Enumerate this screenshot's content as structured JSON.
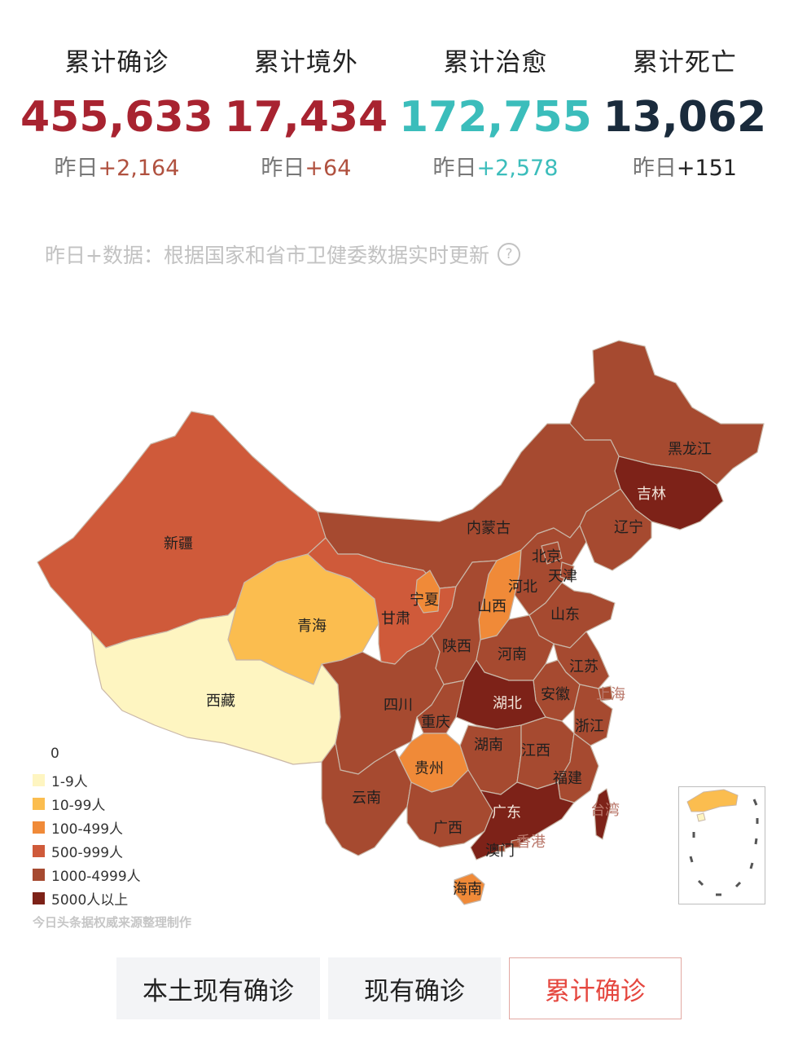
{
  "stats": [
    {
      "label": "累计确诊",
      "value": "455,633",
      "delta_prefix": "昨日",
      "delta": "+2,164",
      "color": "#a82330",
      "delta_color": "#b0513f"
    },
    {
      "label": "累计境外",
      "value": "17,434",
      "delta_prefix": "昨日",
      "delta": "+64",
      "color": "#a82330",
      "delta_color": "#b0513f"
    },
    {
      "label": "累计治愈",
      "value": "172,755",
      "delta_prefix": "昨日",
      "delta": "+2,578",
      "color": "#3bbdbb",
      "delta_color": "#3bbdbb"
    },
    {
      "label": "累计死亡",
      "value": "13,062",
      "delta_prefix": "昨日",
      "delta": "+151",
      "color": "#1a2b3c",
      "delta_color": "#222222"
    }
  ],
  "note": "昨日+数据：根据国家和省市卫健委数据实时更新",
  "help_icon": "?",
  "map_labels": {
    "heilongjiang": "黑龙江",
    "jilin": "吉林",
    "liaoning": "辽宁",
    "neimenggu": "内蒙古",
    "beijing": "北京",
    "tianjin": "天津",
    "hebei": "河北",
    "xinjiang": "新疆",
    "qinghai": "青海",
    "xizang": "西藏",
    "gansu": "甘肃",
    "ningxia": "宁夏",
    "shanxi": "山西",
    "shaanxi": "陕西",
    "shandong": "山东",
    "henan": "河南",
    "jiangsu": "江苏",
    "anhui": "安徽",
    "shanghai": "上海",
    "hubei": "湖北",
    "sichuan": "四川",
    "chongqing": "重庆",
    "zhejiang": "浙江",
    "hunan": "湖南",
    "jiangxi": "江西",
    "guizhou": "贵州",
    "fujian": "福建",
    "yunnan": "云南",
    "guangxi": "广西",
    "guangdong": "广东",
    "taiwan": "台湾",
    "xianggang": "香港",
    "aomen": "澳门",
    "hainan": "海南"
  },
  "legend": {
    "zero": "0",
    "items": [
      {
        "label": "1-9人",
        "color": "#fef5c1"
      },
      {
        "label": "10-99人",
        "color": "#fbbd4f"
      },
      {
        "label": "100-499人",
        "color": "#f08a38"
      },
      {
        "label": "500-999人",
        "color": "#cf5a3a"
      },
      {
        "label": "1000-4999人",
        "color": "#a64a30"
      },
      {
        "label": "5000人以上",
        "color": "#7d2218"
      }
    ]
  },
  "source": "今日头条据权威来源整理制作",
  "tabs": [
    {
      "label": "本土现有确诊",
      "active": false
    },
    {
      "label": "现有确诊",
      "active": false
    },
    {
      "label": "累计确诊",
      "active": true
    }
  ]
}
